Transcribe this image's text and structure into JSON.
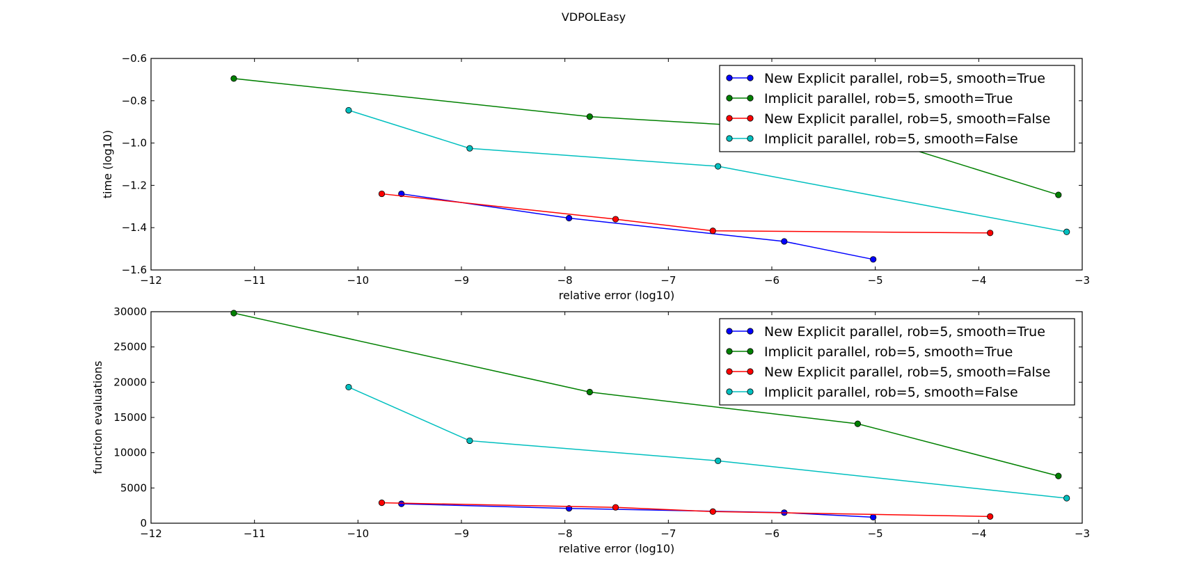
{
  "figure_title": "VDPOLEasy",
  "chart_data": [
    {
      "type": "line",
      "xlabel": "relative error (log10)",
      "ylabel": "time (log10)",
      "xlim": [
        -12,
        -3
      ],
      "ylim": [
        -1.6,
        -0.6
      ],
      "xticks": [
        -12,
        -11,
        -10,
        -9,
        -8,
        -7,
        -6,
        -5,
        -4,
        -3
      ],
      "yticks": [
        -1.6,
        -1.4,
        -1.2,
        -1.0,
        -0.8,
        -0.6
      ],
      "xtick_labels": [
        "−12",
        "−11",
        "−10",
        "−9",
        "−8",
        "−7",
        "−6",
        "−5",
        "−4",
        "−3"
      ],
      "ytick_labels": [
        "−1.6",
        "−1.4",
        "−1.2",
        "−1.0",
        "−0.8",
        "−0.6"
      ],
      "grid": false,
      "legend_position": "top-right",
      "series": [
        {
          "name": "New Explicit parallel, rob=5, smooth=True",
          "color": "#0000ff",
          "x": [
            -9.58,
            -7.96,
            -5.88,
            -5.02
          ],
          "y": [
            -1.24,
            -1.355,
            -1.465,
            -1.55
          ]
        },
        {
          "name": "Implicit parallel, rob=5, smooth=True",
          "color": "#008000",
          "x": [
            -11.2,
            -7.76,
            -5.17,
            -3.23
          ],
          "y": [
            -0.695,
            -0.875,
            -0.95,
            -1.245
          ]
        },
        {
          "name": "New Explicit parallel, rob=5, smooth=False",
          "color": "#ff0000",
          "x": [
            -9.77,
            -7.51,
            -6.57,
            -3.89
          ],
          "y": [
            -1.24,
            -1.36,
            -1.415,
            -1.425
          ]
        },
        {
          "name": "Implicit parallel, rob=5, smooth=False",
          "color": "#00bfbf",
          "x": [
            -10.09,
            -8.92,
            -6.52,
            -3.15
          ],
          "y": [
            -0.845,
            -1.025,
            -1.11,
            -1.42
          ]
        }
      ]
    },
    {
      "type": "line",
      "xlabel": "relative error (log10)",
      "ylabel": "function evaluations",
      "xlim": [
        -12,
        -3
      ],
      "ylim": [
        0,
        30000
      ],
      "xticks": [
        -12,
        -11,
        -10,
        -9,
        -8,
        -7,
        -6,
        -5,
        -4,
        -3
      ],
      "yticks": [
        0,
        5000,
        10000,
        15000,
        20000,
        25000,
        30000
      ],
      "xtick_labels": [
        "−12",
        "−11",
        "−10",
        "−9",
        "−8",
        "−7",
        "−6",
        "−5",
        "−4",
        "−3"
      ],
      "ytick_labels": [
        "0",
        "5000",
        "10000",
        "15000",
        "20000",
        "25000",
        "30000"
      ],
      "grid": false,
      "legend_position": "top-right",
      "series": [
        {
          "name": "New Explicit parallel, rob=5, smooth=True",
          "color": "#0000ff",
          "x": [
            -9.58,
            -7.96,
            -5.88,
            -5.02
          ],
          "y": [
            2750,
            2100,
            1500,
            850
          ]
        },
        {
          "name": "Implicit parallel, rob=5, smooth=True",
          "color": "#008000",
          "x": [
            -11.2,
            -7.76,
            -5.17,
            -3.23
          ],
          "y": [
            29800,
            18600,
            14100,
            6700
          ]
        },
        {
          "name": "New Explicit parallel, rob=5, smooth=False",
          "color": "#ff0000",
          "x": [
            -9.77,
            -7.51,
            -6.57,
            -3.89
          ],
          "y": [
            2900,
            2250,
            1650,
            950
          ]
        },
        {
          "name": "Implicit parallel, rob=5, smooth=False",
          "color": "#00bfbf",
          "x": [
            -10.09,
            -8.92,
            -6.52,
            -3.15
          ],
          "y": [
            19300,
            11700,
            8850,
            3550
          ]
        }
      ]
    }
  ]
}
